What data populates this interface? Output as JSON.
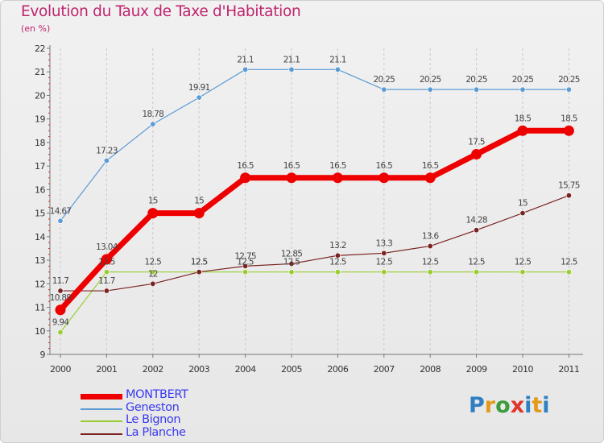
{
  "title": "Evolution du Taux de Taxe d'Habitation",
  "subtitle": "(en %)",
  "logo_text": "Proxiti",
  "chart_data": {
    "type": "line",
    "title": "Evolution du Taux de Taxe d'Habitation",
    "subtitle": "(en %)",
    "xlabel": "",
    "ylabel": "",
    "categories": [
      "2000",
      "2001",
      "2002",
      "2003",
      "2004",
      "2005",
      "2006",
      "2007",
      "2008",
      "2009",
      "2010",
      "2011"
    ],
    "ylim": [
      9,
      22
    ],
    "yticks": [
      "9",
      "10",
      "11",
      "12",
      "13",
      "14",
      "15",
      "16",
      "17",
      "18",
      "19",
      "20",
      "21",
      "22"
    ],
    "grid": "vertical dashed",
    "legend_position": "bottom-left",
    "series": [
      {
        "name": "MONTBERT",
        "color": "#ee0000",
        "values": [
          10.89,
          13.04,
          15,
          15,
          16.5,
          16.5,
          16.5,
          16.5,
          16.5,
          17.5,
          18.5,
          18.5
        ],
        "labels": [
          "10.89",
          "13.04",
          "15",
          "15",
          "16.5",
          "16.5",
          "16.5",
          "16.5",
          "16.5",
          "17.5",
          "18.5",
          "18.5"
        ]
      },
      {
        "name": "Geneston",
        "color": "#5b9bd5",
        "values": [
          14.67,
          17.23,
          18.78,
          19.91,
          21.1,
          21.1,
          21.1,
          20.25,
          20.25,
          20.25,
          20.25,
          20.25
        ],
        "labels": [
          "14.67",
          "17.23",
          "18.78",
          "19.91",
          "21.1",
          "21.1",
          "21.1",
          "20.25",
          "20.25",
          "20.25",
          "20.25",
          "20.25"
        ]
      },
      {
        "name": "Le Bignon",
        "color": "#9acd32",
        "values": [
          9.94,
          12.5,
          12.5,
          12.5,
          12.5,
          12.5,
          12.5,
          12.5,
          12.5,
          12.5,
          12.5,
          12.5
        ],
        "labels": [
          "9.94",
          "12.5",
          "12.5",
          "12.5",
          "12.5",
          "12.5",
          "12.5",
          "12.5",
          "12.5",
          "12.5",
          "12.5",
          "12.5"
        ]
      },
      {
        "name": "La Planche",
        "color": "#7b2323",
        "values": [
          11.7,
          11.7,
          12,
          12.5,
          12.75,
          12.85,
          13.2,
          13.3,
          13.6,
          14.28,
          15,
          15.75
        ],
        "labels": [
          "11.7",
          "11.7",
          "12",
          "12.5",
          "12.75",
          "12.85",
          "13.2",
          "13.3",
          "13.6",
          "14.28",
          "15",
          "15.75"
        ]
      }
    ]
  }
}
